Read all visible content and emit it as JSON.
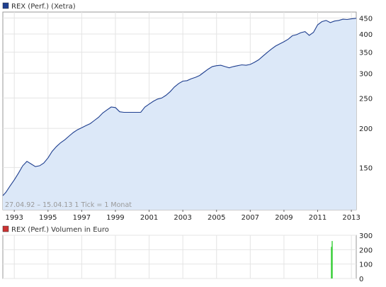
{
  "chart_data": [
    {
      "type": "area",
      "legend": {
        "label": "REX (Perf.) (Xetra)",
        "color": "#1f3f8f",
        "placement": "top-left"
      },
      "info_text": "27.04.92 – 15.04.13   1 Tick = 1 Monat",
      "x_ticks": [
        "1993",
        "1995",
        "1997",
        "1999",
        "2001",
        "2003",
        "2005",
        "2007",
        "2009",
        "2011",
        "2013"
      ],
      "y_ticks": [
        "150",
        "200",
        "250",
        "300",
        "350",
        "400",
        "450"
      ],
      "y_scale": "log",
      "ylim": [
        110,
        470
      ],
      "xlim": [
        1992.32,
        2013.29
      ],
      "grid": true,
      "line_color": "#1f3f8f",
      "fill_color": "#dce8f8",
      "series": [
        {
          "x": [
            1992.32,
            1992.5,
            1992.75,
            1993.0,
            1993.25,
            1993.5,
            1993.75,
            1994.0,
            1994.25,
            1994.5,
            1994.75,
            1995.0,
            1995.25,
            1995.5,
            1995.75,
            1996.0,
            1996.25,
            1996.5,
            1996.75,
            1997.0,
            1997.25,
            1997.5,
            1997.75,
            1998.0,
            1998.25,
            1998.5,
            1998.75,
            1999.0,
            1999.25,
            1999.5,
            1999.75,
            2000.0,
            2000.25,
            2000.5,
            2000.75,
            2001.0,
            2001.25,
            2001.5,
            2001.75,
            2002.0,
            2002.25,
            2002.5,
            2002.75,
            2003.0,
            2003.25,
            2003.5,
            2003.75,
            2004.0,
            2004.25,
            2004.5,
            2004.75,
            2005.0,
            2005.25,
            2005.5,
            2005.75,
            2006.0,
            2006.25,
            2006.5,
            2006.75,
            2007.0,
            2007.25,
            2007.5,
            2007.75,
            2008.0,
            2008.25,
            2008.5,
            2008.75,
            2009.0,
            2009.25,
            2009.5,
            2009.75,
            2010.0,
            2010.25,
            2010.5,
            2010.75,
            2011.0,
            2011.25,
            2011.5,
            2011.75,
            2012.0,
            2012.25,
            2012.5,
            2012.75,
            2013.0,
            2013.29
          ],
          "y": [
            122,
            125,
            131,
            137,
            144,
            152,
            157,
            154,
            151,
            152,
            155,
            161,
            169,
            175,
            180,
            184,
            189,
            194,
            198,
            201,
            204,
            207,
            212,
            217,
            224,
            229,
            234,
            233,
            226,
            225,
            225,
            225,
            225,
            225,
            234,
            239,
            244,
            248,
            250,
            255,
            262,
            271,
            278,
            283,
            284,
            288,
            291,
            295,
            302,
            309,
            315,
            317,
            318,
            315,
            312,
            315,
            317,
            319,
            318,
            320,
            325,
            331,
            340,
            349,
            358,
            366,
            372,
            378,
            385,
            395,
            398,
            404,
            407,
            396,
            405,
            428,
            438,
            442,
            435,
            440,
            442,
            446,
            445,
            447,
            449
          ]
        }
      ]
    },
    {
      "type": "bar",
      "legend": {
        "label": "REX (Perf.) Volumen in Euro",
        "color": "#cc3333",
        "placement": "top-left"
      },
      "y_ticks": [
        "0",
        "100",
        "200",
        "300"
      ],
      "ylim": [
        0,
        300
      ],
      "xlim": [
        1992.32,
        2013.29
      ],
      "grid": true,
      "bar_color": "#33cc33",
      "series": [
        {
          "x": [
            2011.79,
            2011.83
          ],
          "values": [
            220,
            260
          ]
        }
      ]
    }
  ]
}
